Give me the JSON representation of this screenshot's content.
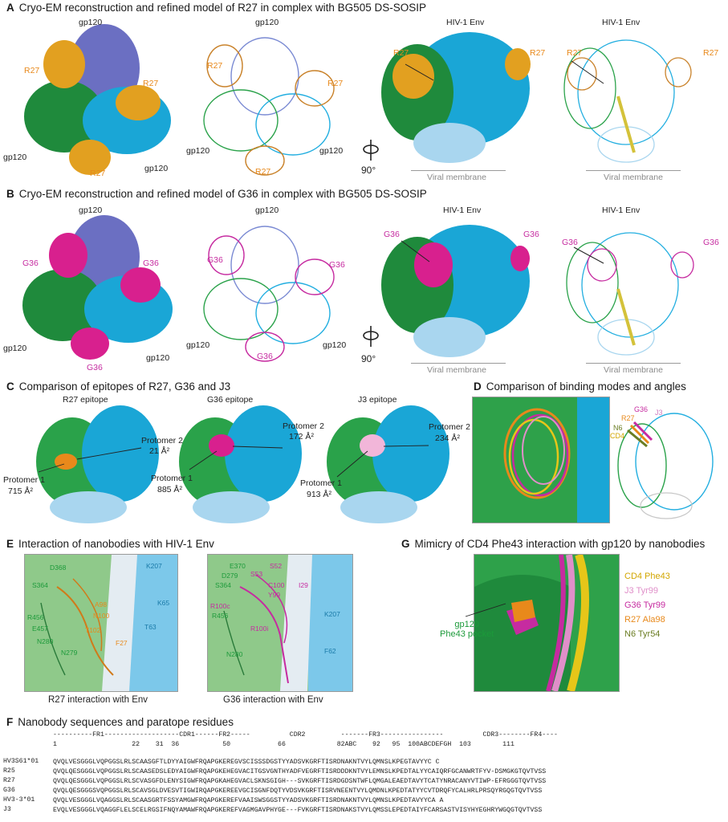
{
  "panelA": {
    "letter": "A",
    "title": "Cryo-EM reconstruction and refined model of R27 in complex with BG505 DS-SOSIP",
    "labels": {
      "gp120": "gp120",
      "nb": "R27",
      "env": "HIV-1 Env",
      "membrane": "Viral membrane",
      "rotation": "90°"
    }
  },
  "panelB": {
    "letter": "B",
    "title": "Cryo-EM reconstruction and refined model of G36 in complex with BG505 DS-SOSIP",
    "labels": {
      "gp120": "gp120",
      "nb": "G36",
      "env": "HIV-1 Env",
      "membrane": "Viral membrane",
      "rotation": "90°"
    }
  },
  "panelC": {
    "letter": "C",
    "title": "Comparison of epitopes of R27, G36 and J3",
    "epitopes": [
      {
        "title": "R27 epitope",
        "p1": "Protomer 1",
        "p1area": "715 Å²",
        "p2": "Protomer 2",
        "p2area": "21 Å²"
      },
      {
        "title": "G36 epitope",
        "p1": "Protomer 1",
        "p1area": "885 Å²",
        "p2": "Protomer 2",
        "p2area": "172 Å²"
      },
      {
        "title": "J3 epitope",
        "p1": "Protomer 1",
        "p1area": "913 Å²",
        "p2": "Protomer 2",
        "p2area": "234 Å²"
      }
    ]
  },
  "panelD": {
    "letter": "D",
    "title": "Comparison of binding modes and angles",
    "labels": {
      "g36": "G36",
      "r27": "R27",
      "j3": "J3",
      "n6": "N6",
      "cd4": "CD4"
    }
  },
  "panelE": {
    "letter": "E",
    "title": "Interaction of nanobodies with HIV-1 Env",
    "caption1": "R27 interaction with Env",
    "caption2": "G36 interaction with Env",
    "r27_residues": [
      "D368",
      "S364",
      "R456",
      "E457",
      "N280",
      "N279",
      "K207",
      "K65",
      "T63",
      "F27",
      "T102",
      "A98",
      "N100"
    ],
    "g36_residues": [
      "E370",
      "D279",
      "S364",
      "R456",
      "N280",
      "S52",
      "S53",
      "C100",
      "Y99",
      "R100c",
      "R100i",
      "K207",
      "F62",
      "I29"
    ]
  },
  "panelG": {
    "letter": "G",
    "title": "Mimicry of CD4 Phe43 interaction with gp120 by nanobodies",
    "pocket": "gp120\nPhe43 pocket",
    "pocket_line1": "gp120",
    "pocket_line2": "Phe43 pocket",
    "legend": [
      {
        "label": "CD4 Phe43",
        "color": "#e6c619"
      },
      {
        "label": "J3 Tyr99",
        "color": "#e08fc9"
      },
      {
        "label": "G36 Tyr99",
        "color": "#c62ba0"
      },
      {
        "label": "R27 Ala98",
        "color": "#e8891b"
      },
      {
        "label": "N6 Tyr54",
        "color": "#6b7d23"
      }
    ]
  },
  "panelF": {
    "letter": "F",
    "title": "Nanobody sequences and paratope residues",
    "regions": "----------FR1-------------------CDR1------FR2-----          CDR2         -------FR3----------------          CDR3--------FR4----",
    "numbers": "1                   22    31  36           50            66             82ABC    92   95  100ABCDEFGH  103        111",
    "rows": [
      {
        "name": "HV3S61*01",
        "seq": "QVQLVESGGGLVQPGGSLRLSCAASGFTLDYYAIGWFRQAPGKEREGVSCISSSDGSTYYADSVKGRFTISRDNAKNTVYLQMNSLKPEGTAVYYC C"
      },
      {
        "name": "R25",
        "seq": "QVQLQESGGGLVQPGGSLRLSCAASEDSLEDYAIGWFRQAPGKEHEGVACITGSVGNTHYADFVEGRFTISRDDDKNTVYLEMNSLKPEDTALYYCAIQRFGCANWRTFYV-DSMGKGTQVTVSS"
      },
      {
        "name": "R27",
        "seq": "QVQLQESGGGLVQPGGSLRLSCVASGFDLENYSIGWFRQAPGKAHEGVACLSKNSGIGH---SVKGRFTISRDGDSNTWFLQMGALEAEDTAVYTCATYNRACANYVTIWP-EFRGGGTQVTVSS"
      },
      {
        "name": "G36",
        "seq": "QVQLQESGGGSVQPGGSLRLSCAVSGLDVESVTIGWIRQAPGKEREEVGCISGNFDQTYVDSVKGRFTISRVNEENTVYLQMDNLKPEDTATYYCVTDRQFYCALHRLPRSQYRGQGTQVTVSS"
      },
      {
        "name": "HV3-3*01",
        "seq": "QVQLVESGGGLVQAGGSLRLSCAASGRTFSSYAMGWFRQAPGKEREFVAAISWSGGSTYYADSVKGRFTISRDNAKNTVYLQMNSLKPEDTAVYYCA A"
      },
      {
        "name": "J3",
        "seq": "EVQLVESGGGLVQAGGFLELSCELRGSIFNQYAMAWFRQAPGKEREFVAGMGAVPHYGE---FVKGRFTISRDNAKSTVYLQMSSLEPEDTAIYFCARSASTVISYHYEGHRYWGQGTQVTVSS"
      }
    ]
  }
}
